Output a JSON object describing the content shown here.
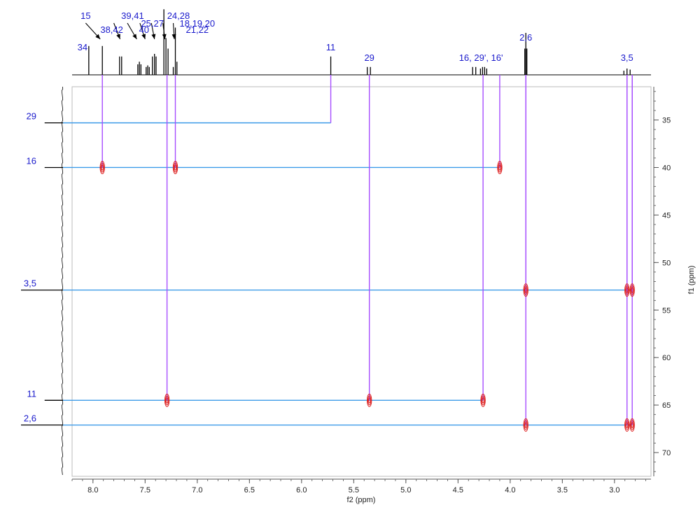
{
  "chart_data": {
    "type": "2D NMR HSQC spectrum",
    "x_axis": {
      "label": "f2 (ppm)",
      "min": 2.65,
      "max": 8.2,
      "reversed": true,
      "ticks": [
        8.0,
        7.5,
        7.0,
        6.5,
        6.0,
        5.5,
        5.0,
        4.5,
        4.0,
        3.5,
        3.0
      ],
      "tick_labels": [
        "8.0",
        "7.5",
        "7.0",
        "6.5",
        "6.0",
        "5.5",
        "5.0",
        "4.5",
        "4.0",
        "3.5",
        "3.0"
      ]
    },
    "y_axis": {
      "label": "f1 (ppm)",
      "min": 31.5,
      "max": 72.5,
      "reversed": true,
      "ticks": [
        35,
        40,
        45,
        50,
        55,
        60,
        65,
        70
      ],
      "tick_labels": [
        "35",
        "40",
        "45",
        "50",
        "55",
        "60",
        "65",
        "70"
      ]
    },
    "proton_peaks": [
      {
        "ppm": 8.04,
        "height": 0.55
      },
      {
        "ppm": 7.91,
        "height": 0.55
      },
      {
        "ppm": 7.745,
        "height": 0.35
      },
      {
        "ppm": 7.725,
        "height": 0.35
      },
      {
        "ppm": 7.57,
        "height": 0.2
      },
      {
        "ppm": 7.555,
        "height": 0.25
      },
      {
        "ppm": 7.54,
        "height": 0.2
      },
      {
        "ppm": 7.49,
        "height": 0.15
      },
      {
        "ppm": 7.475,
        "height": 0.18
      },
      {
        "ppm": 7.46,
        "height": 0.15
      },
      {
        "ppm": 7.43,
        "height": 0.35
      },
      {
        "ppm": 7.41,
        "height": 0.4
      },
      {
        "ppm": 7.395,
        "height": 0.35
      },
      {
        "ppm": 7.32,
        "height": 1.25
      },
      {
        "ppm": 7.3,
        "height": 0.7
      },
      {
        "ppm": 7.28,
        "height": 0.5
      },
      {
        "ppm": 7.23,
        "height": 0.15
      },
      {
        "ppm": 7.21,
        "height": 0.9
      },
      {
        "ppm": 7.195,
        "height": 0.25
      },
      {
        "ppm": 5.72,
        "height": 0.35
      },
      {
        "ppm": 5.37,
        "height": 0.15
      },
      {
        "ppm": 5.34,
        "height": 0.15
      },
      {
        "ppm": 4.36,
        "height": 0.15
      },
      {
        "ppm": 4.33,
        "height": 0.15
      },
      {
        "ppm": 4.285,
        "height": 0.12
      },
      {
        "ppm": 4.265,
        "height": 0.15
      },
      {
        "ppm": 4.245,
        "height": 0.15
      },
      {
        "ppm": 4.225,
        "height": 0.12
      },
      {
        "ppm": 3.86,
        "height": 0.5
      },
      {
        "ppm": 3.85,
        "height": 0.8
      },
      {
        "ppm": 3.84,
        "height": 0.5
      },
      {
        "ppm": 2.91,
        "height": 0.08
      },
      {
        "ppm": 2.88,
        "height": 0.12
      },
      {
        "ppm": 2.85,
        "height": 0.1
      }
    ],
    "carbon_peaks": [
      {
        "ppm": 35.3,
        "height": 0.35,
        "label": "29"
      },
      {
        "ppm": 40.0,
        "height": 0.35,
        "label": "16"
      },
      {
        "ppm": 52.9,
        "height": 0.8,
        "label": "3,5"
      },
      {
        "ppm": 64.5,
        "height": 0.35,
        "label": "11"
      },
      {
        "ppm": 67.1,
        "height": 0.8,
        "label": "2,6"
      }
    ],
    "top_labels": [
      {
        "text": "34",
        "ppm": 8.1,
        "row": 4
      },
      {
        "text": "15",
        "ppm": 8.07,
        "row": 1
      },
      {
        "text": "38,42",
        "ppm": 7.82,
        "row": 3
      },
      {
        "text": "39,41",
        "ppm": 7.62,
        "row": 1
      },
      {
        "text": "40",
        "ppm": 7.51,
        "row": 3
      },
      {
        "text": "25,27",
        "ppm": 7.43,
        "row": 2
      },
      {
        "text": "24,28",
        "ppm": 7.18,
        "row": 1
      },
      {
        "text": "18,19,20",
        "ppm": 7.0,
        "row": 2
      },
      {
        "text": "21,22",
        "ppm": 7.0,
        "row": 3
      },
      {
        "text": "11",
        "ppm": 5.72,
        "row": 4
      },
      {
        "text": "29",
        "ppm": 5.35,
        "row": 5
      },
      {
        "text": "16, 29', 16'",
        "ppm": 4.28,
        "row": 5
      },
      {
        "text": "2,6",
        "ppm": 3.85,
        "row": 0
      },
      {
        "text": "3,5",
        "ppm": 2.88,
        "row": 5
      }
    ],
    "pointer_arrows": [
      {
        "from_ppm": 8.07,
        "to_ppm": 7.93
      },
      {
        "from_ppm": 7.8,
        "to_ppm": 7.74
      },
      {
        "from_ppm": 7.67,
        "to_ppm": 7.58
      },
      {
        "from_ppm": 7.55,
        "to_ppm": 7.5
      },
      {
        "from_ppm": 7.44,
        "to_ppm": 7.41
      },
      {
        "from_ppm": 7.33,
        "to_ppm": 7.31
      },
      {
        "from_ppm": 7.23,
        "to_ppm": 7.22
      }
    ],
    "correlations": [
      {
        "h": 5.72,
        "c": 35.3,
        "label": "29",
        "crosspeak": false
      },
      {
        "h": 7.91,
        "c": 40.0,
        "label": "16",
        "crosspeak": true
      },
      {
        "h": 7.21,
        "c": 40.0,
        "label": "16",
        "crosspeak": true
      },
      {
        "h": 4.1,
        "c": 40.0,
        "label": "16",
        "crosspeak": true
      },
      {
        "h": 3.85,
        "c": 52.9,
        "label": "3,5",
        "crosspeak": true
      },
      {
        "h": 2.88,
        "c": 52.9,
        "label": "3,5",
        "crosspeak": true
      },
      {
        "h": 2.83,
        "c": 52.9,
        "label": "3,5",
        "crosspeak": true
      },
      {
        "h": 7.29,
        "c": 64.5,
        "label": "11",
        "crosspeak": true
      },
      {
        "h": 5.35,
        "c": 64.5,
        "label": "11",
        "crosspeak": true
      },
      {
        "h": 4.26,
        "c": 64.5,
        "label": "11",
        "crosspeak": true
      },
      {
        "h": 3.85,
        "c": 67.1,
        "label": "2,6",
        "crosspeak": true
      },
      {
        "h": 2.88,
        "c": 67.1,
        "label": "2,6",
        "crosspeak": true
      },
      {
        "h": 2.83,
        "c": 67.1,
        "label": "2,6",
        "crosspeak": true
      }
    ],
    "colors": {
      "labels": "#1a1acc",
      "horizontal_lines": "#3d9be9",
      "vertical_lines": "#a64dff",
      "crosspeaks": "#dd2222",
      "spectrum": "#000000",
      "frame": "#bbbbbb"
    }
  }
}
